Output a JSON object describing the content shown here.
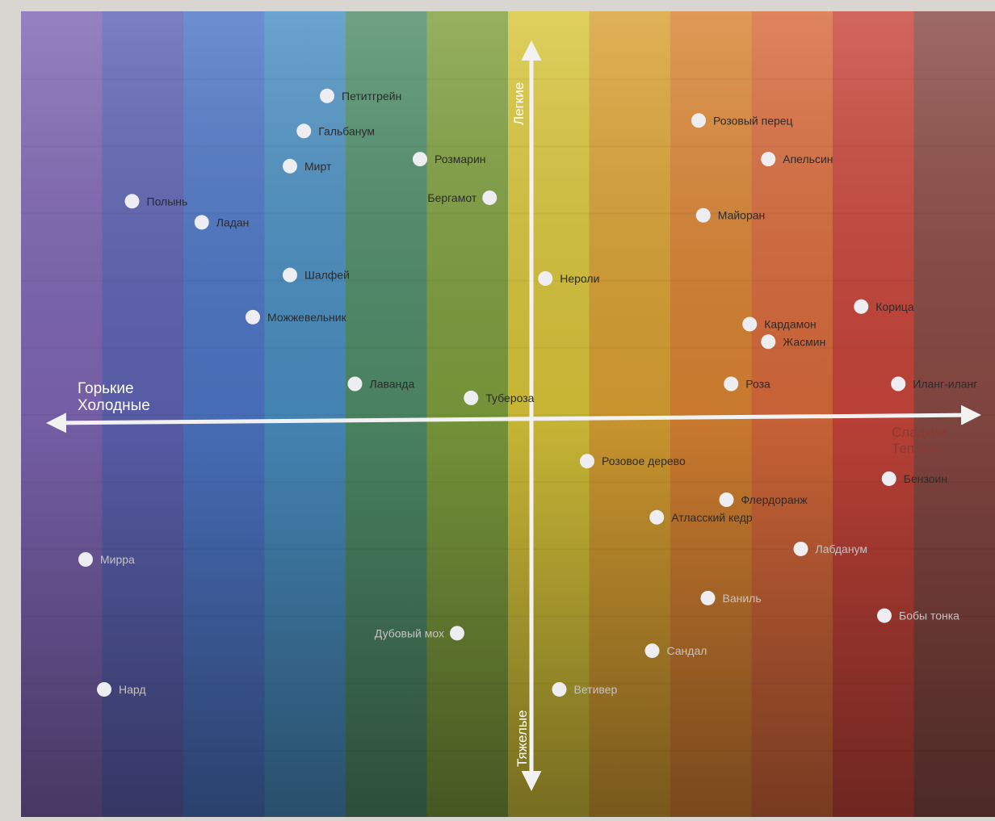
{
  "chart_data": {
    "type": "scatter",
    "title": "",
    "axes": {
      "x": {
        "left_label_line1": "Горькие",
        "left_label_line2": "Холодные",
        "right_label_line1": "Сладкие",
        "right_label_line2": "Теплые",
        "range": [
          -10,
          10
        ]
      },
      "y": {
        "top_label": "Легкие",
        "bottom_label": "Тяжелые",
        "range": [
          -10,
          10
        ]
      }
    },
    "grid": false,
    "band_colors": [
      "#7f66b3",
      "#5e63b3",
      "#4d76c6",
      "#4a8fc2",
      "#4f8d6a",
      "#7f9f3e",
      "#d8c53a",
      "#d9a132",
      "#d98432",
      "#d86a3b",
      "#c8453a",
      "#8a4a44"
    ],
    "points": [
      {
        "label": "Петитгрейн",
        "x": -4.4,
        "y": 9.2
      },
      {
        "label": "Гальбанум",
        "x": -4.9,
        "y": 8.2
      },
      {
        "label": "Мирт",
        "x": -5.2,
        "y": 7.2
      },
      {
        "label": "Розмарин",
        "x": -2.4,
        "y": 7.4
      },
      {
        "label": "Бергамот",
        "x": -0.9,
        "y": 6.3
      },
      {
        "label": "Полынь",
        "x": -8.6,
        "y": 6.2
      },
      {
        "label": "Ладан",
        "x": -7.1,
        "y": 5.6
      },
      {
        "label": "Шалфей",
        "x": -5.2,
        "y": 4.1
      },
      {
        "label": "Можжевельник",
        "x": -6.0,
        "y": 2.9
      },
      {
        "label": "Лаванда",
        "x": -3.8,
        "y": 1.0
      },
      {
        "label": "Тубероза",
        "x": -1.3,
        "y": 0.6
      },
      {
        "label": "Нероли",
        "x": 0.3,
        "y": 4.0
      },
      {
        "label": "Розовый перец",
        "x": 3.6,
        "y": 8.5
      },
      {
        "label": "Апельсин",
        "x": 5.1,
        "y": 7.4
      },
      {
        "label": "Майоран",
        "x": 3.7,
        "y": 5.8
      },
      {
        "label": "Корица",
        "x": 7.1,
        "y": 3.2
      },
      {
        "label": "Кардамон",
        "x": 4.7,
        "y": 2.7
      },
      {
        "label": "Жасмин",
        "x": 5.1,
        "y": 2.2
      },
      {
        "label": "Роза",
        "x": 4.3,
        "y": 1.0
      },
      {
        "label": "Иланг-иланг",
        "x": 7.9,
        "y": 1.0
      },
      {
        "label": "Розовое дерево",
        "x": 1.2,
        "y": -1.2
      },
      {
        "label": "Бензоин",
        "x": 7.7,
        "y": -1.7
      },
      {
        "label": "Флердоранж",
        "x": 4.2,
        "y": -2.3
      },
      {
        "label": "Атласский кедр",
        "x": 2.7,
        "y": -2.8
      },
      {
        "label": "Лабданум",
        "x": 5.8,
        "y": -3.7
      },
      {
        "label": "Мирра",
        "x": -9.6,
        "y": -4.0
      },
      {
        "label": "Ваниль",
        "x": 3.8,
        "y": -5.1
      },
      {
        "label": "Бобы тонка",
        "x": 7.6,
        "y": -5.6
      },
      {
        "label": "Дубовый мох",
        "x": -1.6,
        "y": -6.1
      },
      {
        "label": "Сандал",
        "x": 2.6,
        "y": -6.6
      },
      {
        "label": "Нард",
        "x": -9.2,
        "y": -7.7
      },
      {
        "label": "Ветивер",
        "x": 0.6,
        "y": -7.7
      }
    ]
  }
}
